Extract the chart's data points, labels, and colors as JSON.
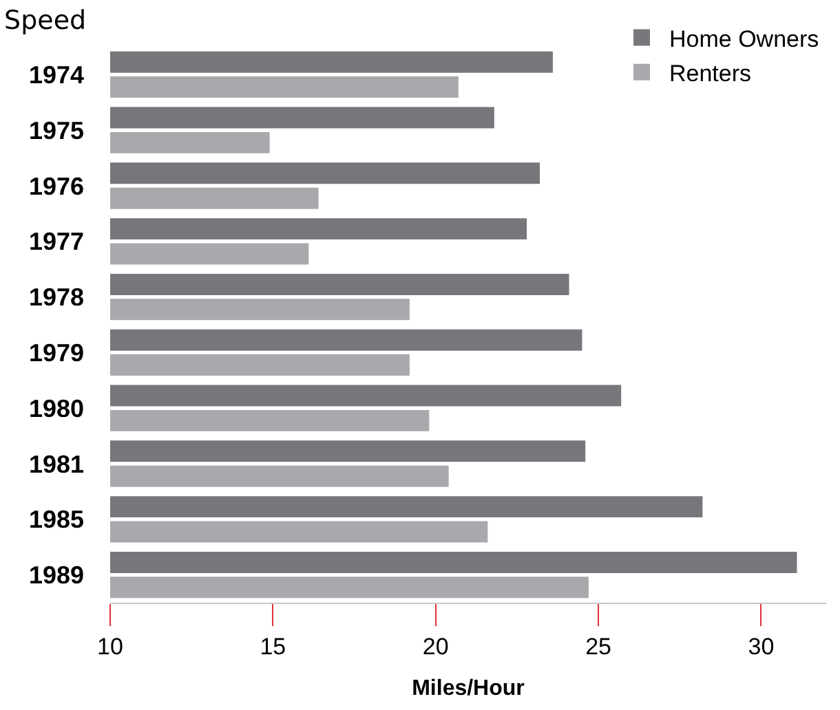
{
  "chart_data": {
    "type": "bar",
    "orientation": "horizontal",
    "title": "Speed",
    "xlabel": "Miles/Hour",
    "categories": [
      "1974",
      "1975",
      "1976",
      "1977",
      "1978",
      "1979",
      "1980",
      "1981",
      "1985",
      "1989"
    ],
    "series": [
      {
        "name": "Home Owners",
        "color": "#77777b",
        "values": [
          23.6,
          21.8,
          23.2,
          22.8,
          24.1,
          24.5,
          25.7,
          24.6,
          28.2,
          31.1
        ]
      },
      {
        "name": "Renters",
        "color": "#a8a9ad",
        "values": [
          20.7,
          14.9,
          16.4,
          16.1,
          19.2,
          19.2,
          19.8,
          20.4,
          21.6,
          24.7
        ]
      }
    ],
    "xlim": [
      10,
      32
    ],
    "xticks": [
      10,
      15,
      20,
      25,
      30
    ],
    "legend": "top right"
  }
}
